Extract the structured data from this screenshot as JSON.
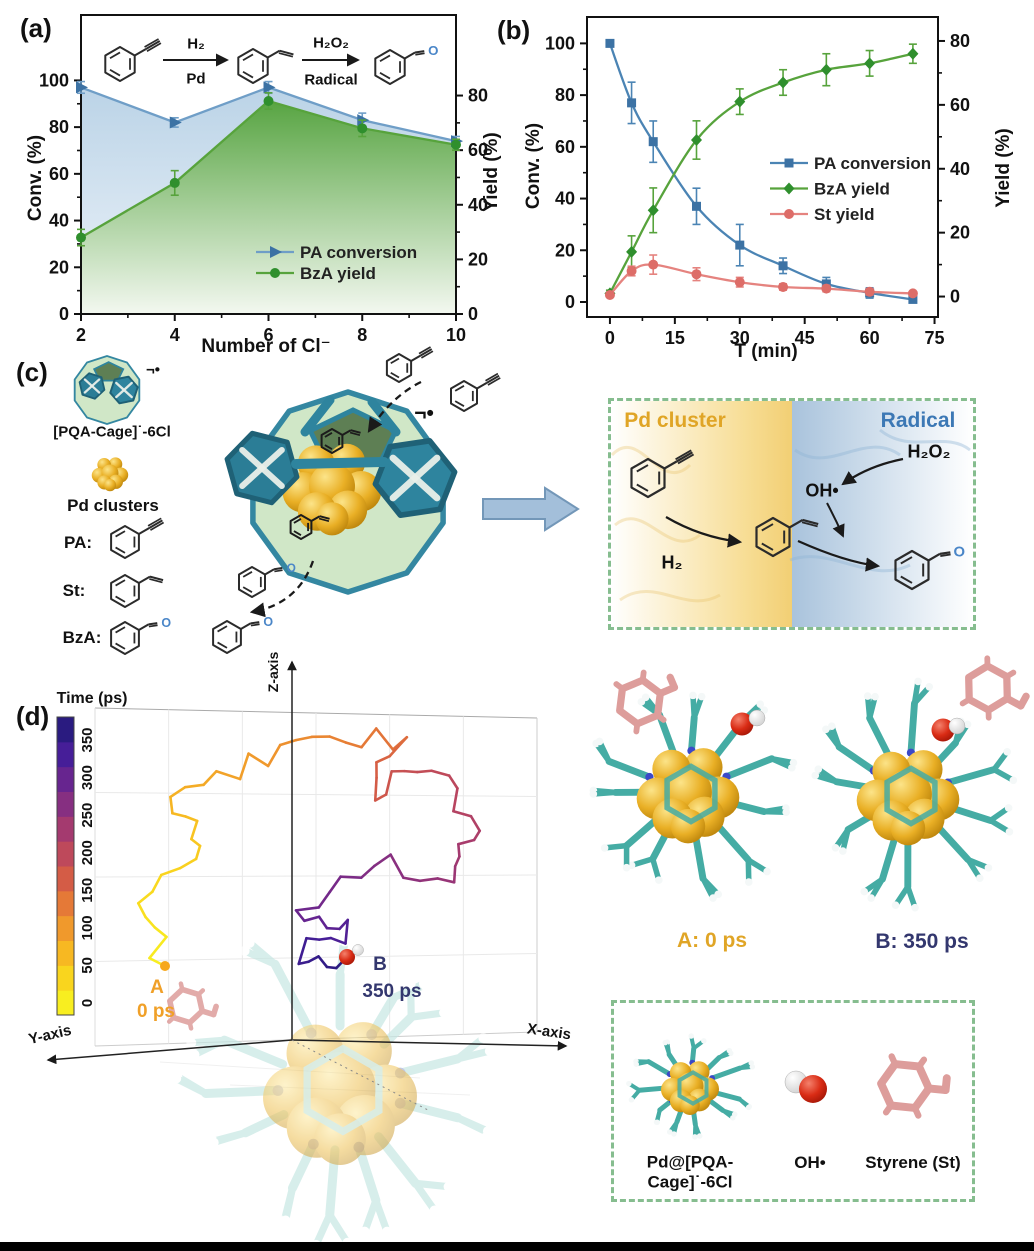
{
  "colors": {
    "blue_line": "#6f9ec7",
    "blue_marker": "#3c72a4",
    "green_line": "#57a33c",
    "green_marker": "#2f8f2d",
    "salmon": "#e5837f",
    "gold_text": "#e0a526",
    "navy_text": "#33376e",
    "radical_blue": "#3c78b5",
    "cage_teal": "#2e849e",
    "cage_green": "#cfe7c6",
    "box_border": "#86bd8f",
    "gold_cluster": "#e3a81c",
    "oxygen_blue": "#4a86c8",
    "pink": "#dd9d9b",
    "axis": "#111111"
  },
  "glyphs": {
    "oxygen": "O"
  },
  "panel_a": {
    "label": "(a)",
    "xlabel": "Number of Cl⁻",
    "ylabel_left": "Conv. (%)",
    "ylabel_right": "Yield (%)",
    "scheme": {
      "step1_top": "H₂",
      "step1_bottom": "Pd",
      "step2_top": "H₂O₂",
      "step2_bottom": "Radical"
    }
  },
  "panel_b": {
    "label": "(b)",
    "xlabel": "T (min)",
    "ylabel_left": "Conv. (%)",
    "ylabel_right": "Yield (%)"
  },
  "panel_c": {
    "label": "(c)",
    "cage_name": "[PQA-Cage]˙-6Cl",
    "radical_mark": "¬•",
    "pd_name": "Pd clusters",
    "pa": "PA:",
    "st": "St:",
    "bza": "BzA:",
    "box": {
      "left_title": "Pd cluster",
      "right_title": "Radical",
      "h2": "H₂",
      "h2o2": "H₂O₂",
      "oh": "OH•"
    }
  },
  "panel_d": {
    "label": "(d)",
    "colorbar_title": "Time (ps)",
    "x_axis": "X-axis",
    "y_axis": "Y-axis",
    "z_axis": "Z-axis",
    "point_a": "A",
    "point_a_time": "0 ps",
    "point_b": "B",
    "point_b_time": "350 ps"
  },
  "snapshots": {
    "a_label": "A: 0 ps",
    "b_label": "B: 350 ps"
  },
  "legend_box": {
    "cage_label": "Pd@[PQA-\nCage]˙-6Cl",
    "oh_label": "OH•",
    "styrene_label": "Styrene (St)"
  },
  "chart_data": [
    {
      "id": "panel-a-chart",
      "type": "line",
      "title": "",
      "xlabel": "Number of Cl⁻",
      "ylabel_left": "Conv. (%)",
      "ylabel_right": "Yield (%)",
      "x": [
        2,
        4,
        6,
        8,
        10
      ],
      "xlim": [
        2,
        10
      ],
      "xticks": [
        2,
        4,
        6,
        8,
        10
      ],
      "ylim_left": [
        0,
        128
      ],
      "yticks_left": [
        0,
        20,
        40,
        60,
        80,
        100
      ],
      "ylim_right": [
        0,
        109.5
      ],
      "yticks_right": [
        0,
        20,
        40,
        60,
        80
      ],
      "grid": false,
      "legend_position": "inside-bottom-right",
      "smooth": false,
      "series": [
        {
          "name": "PA conversion",
          "axis": "left",
          "color": "#6f9ec7",
          "marker_color": "#3c72a4",
          "marker": "triangle-right",
          "area": true,
          "values": [
            97,
            82,
            97,
            83,
            74
          ],
          "errors": [
            2.5,
            2,
            2.5,
            3,
            2
          ]
        },
        {
          "name": "BzA yield",
          "axis": "right",
          "color": "#57a33c",
          "marker_color": "#2f8f2d",
          "marker": "circle",
          "area": true,
          "values": [
            28,
            48,
            78,
            68,
            62
          ],
          "errors": [
            3,
            4.5,
            3,
            3,
            2
          ]
        }
      ]
    },
    {
      "id": "panel-b-chart",
      "type": "line",
      "title": "",
      "xlabel": "T (min)",
      "ylabel_left": "Conv. (%)",
      "ylabel_right": "Yield (%)",
      "x": [
        0,
        5,
        10,
        20,
        30,
        40,
        50,
        60,
        70
      ],
      "xlim": [
        -5.3,
        75.8
      ],
      "xticks": [
        0,
        15,
        30,
        45,
        60,
        75
      ],
      "ylim_left": [
        -5.8,
        110.2
      ],
      "yticks_left": [
        0,
        20,
        40,
        60,
        80,
        100
      ],
      "ylim_right": [
        -6.4,
        87.5
      ],
      "yticks_right": [
        0,
        20,
        40,
        60,
        80
      ],
      "grid": false,
      "legend_position": "inside-middle-right",
      "smooth": true,
      "series": [
        {
          "name": "PA conversion",
          "axis": "left",
          "color": "#4b84b4",
          "marker_color": "#3c72a4",
          "marker": "square",
          "values": [
            100,
            77,
            62,
            37,
            22,
            14,
            7,
            3.5,
            1
          ],
          "errors": [
            1,
            8,
            8,
            7,
            8,
            3,
            2.5,
            2,
            1
          ]
        },
        {
          "name": "BzA yield",
          "axis": "right",
          "color": "#57a33c",
          "marker_color": "#2f8f2d",
          "marker": "diamond",
          "values": [
            1,
            14,
            27,
            49,
            61,
            67,
            71,
            73,
            76
          ],
          "errors": [
            1,
            5,
            7,
            6,
            4,
            4,
            5,
            4,
            3
          ]
        },
        {
          "name": "St yield",
          "axis": "right",
          "color": "#e5837f",
          "marker_color": "#dd6d68",
          "marker": "circle",
          "values": [
            0.5,
            8,
            10,
            7,
            4.5,
            3,
            2.5,
            1.5,
            1
          ],
          "errors": [
            0.3,
            1.5,
            3,
            2,
            1.5,
            1,
            1,
            1,
            0.5
          ]
        }
      ]
    },
    {
      "id": "time-colorbar",
      "type": "colorbar",
      "title": "Time (ps)",
      "unit": "ps",
      "ticks": [
        0,
        50,
        100,
        150,
        200,
        250,
        300,
        350
      ],
      "range": [
        0,
        350
      ],
      "palette_bottom_to_top": [
        "#f8ee20",
        "#f9d51e",
        "#f7b822",
        "#f0992c",
        "#e57937",
        "#d45c46",
        "#be495b",
        "#a43a6f",
        "#862f81",
        "#67258f",
        "#461e98",
        "#2a1b80"
      ]
    }
  ]
}
